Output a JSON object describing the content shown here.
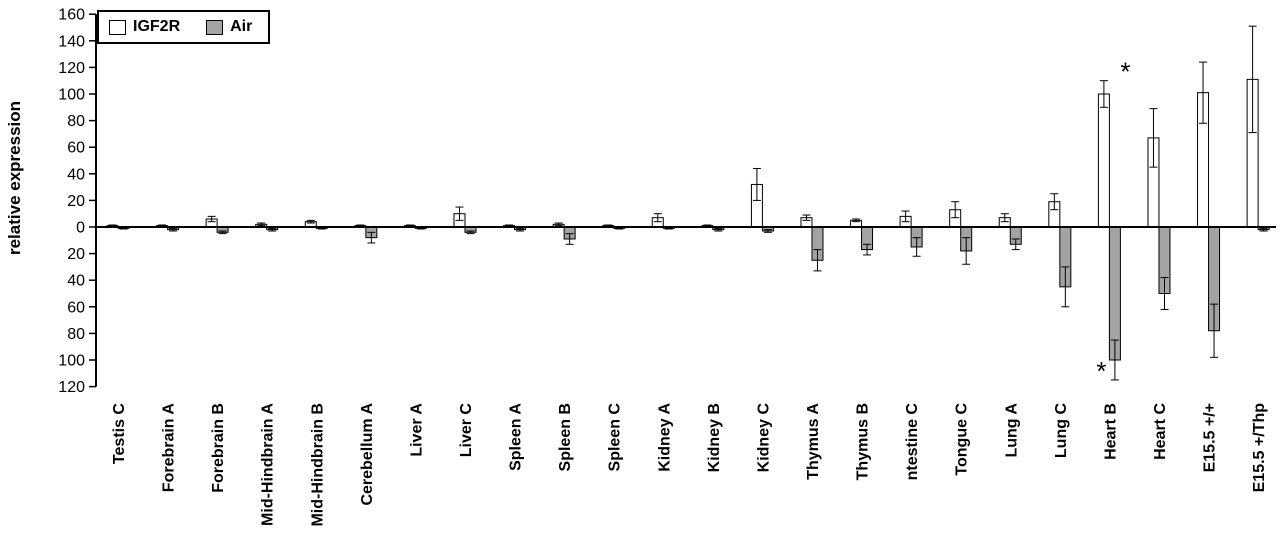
{
  "chart_data": {
    "type": "bar",
    "title": "",
    "xlabel": "",
    "ylabel": "relative expression",
    "grid": false,
    "legend_position": "top-left-inside",
    "ylim": [
      -120,
      160
    ],
    "ytick_values": [
      160,
      140,
      120,
      100,
      80,
      60,
      40,
      20,
      0,
      -20,
      -40,
      -60,
      -80,
      -100,
      -120
    ],
    "ytick_labels": [
      "160",
      "140",
      "120",
      "100",
      "80",
      "60",
      "40",
      "20",
      "0",
      "20",
      "40",
      "60",
      "80",
      "100",
      "120"
    ],
    "categories": [
      "Testis C",
      "Forebrain A",
      "Forebrain B",
      "Mid-Hindbrain A",
      "Mid-Hindbrain B",
      "Cerebellum A",
      "Liver A",
      "Liver C",
      "Spleen A",
      "Spleen B",
      "Spleen C",
      "Kidney A",
      "Kidney B",
      "Kidney C",
      "Thymus A",
      "Thymus B",
      "ntestine C",
      "Tongue C",
      "Lung A",
      "Lung C",
      "Heart B",
      "Heart C",
      "E15.5 +/+",
      "E15.5 +/Thp"
    ],
    "series": [
      {
        "name": "IGF2R",
        "color": "#ffffff",
        "values": [
          1,
          1,
          6,
          2,
          4,
          1,
          1,
          10,
          1,
          2,
          1,
          7,
          1,
          32,
          7,
          5,
          8,
          13,
          7,
          19,
          100,
          67,
          101,
          111
        ],
        "errors": [
          0.5,
          0.5,
          2,
          1,
          1,
          0.5,
          0.5,
          5,
          0.5,
          1,
          0.5,
          3,
          0.5,
          12,
          2,
          1,
          4,
          6,
          3,
          6,
          10,
          22,
          23,
          40
        ]
      },
      {
        "name": "Air",
        "color": "#a3a3a3",
        "values": [
          -1,
          -2,
          -4,
          -2,
          -1,
          -8,
          -1,
          -4,
          -2,
          -9,
          -1,
          -1,
          -2,
          -3,
          -25,
          -17,
          -15,
          -18,
          -13,
          -45,
          -100,
          -50,
          -78,
          -2
        ],
        "errors": [
          0.5,
          1,
          1,
          1,
          0.5,
          4,
          0.5,
          1,
          1,
          4,
          0.5,
          0.5,
          1,
          1,
          8,
          4,
          7,
          10,
          4,
          15,
          15,
          12,
          20,
          1
        ]
      }
    ],
    "annotations": [
      {
        "text": "*",
        "category_index": 20,
        "y_value": 110,
        "x_offset": 16
      },
      {
        "text": "*",
        "category_index": 20,
        "y_value": -115,
        "x_offset": -8
      }
    ]
  }
}
